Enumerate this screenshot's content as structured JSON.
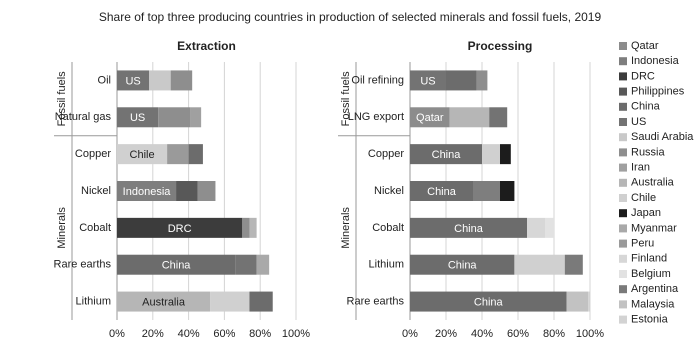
{
  "title": "Share of top three producing countries in production of selected minerals and fossil fuels, 2019",
  "legend": [
    {
      "name": "Qatar",
      "color": "#8c8c8c"
    },
    {
      "name": "Indonesia",
      "color": "#7e7e7e"
    },
    {
      "name": "DRC",
      "color": "#3c3c3c"
    },
    {
      "name": "Philippines",
      "color": "#585858"
    },
    {
      "name": "China",
      "color": "#6c6c6c"
    },
    {
      "name": "US",
      "color": "#737373"
    },
    {
      "name": "Saudi Arabia",
      "color": "#c9c9c9"
    },
    {
      "name": "Russia",
      "color": "#8e8e8e"
    },
    {
      "name": "Iran",
      "color": "#a0a0a0"
    },
    {
      "name": "Australia",
      "color": "#b6b6b6"
    },
    {
      "name": "Chile",
      "color": "#d0d0d0"
    },
    {
      "name": "Japan",
      "color": "#1c1c1c"
    },
    {
      "name": "Myanmar",
      "color": "#a9a9a9"
    },
    {
      "name": "Peru",
      "color": "#9a9a9a"
    },
    {
      "name": "Finland",
      "color": "#d7d7d7"
    },
    {
      "name": "Belgium",
      "color": "#e2e2e2"
    },
    {
      "name": "Argentina",
      "color": "#7a7a7a"
    },
    {
      "name": "Malaysia",
      "color": "#c2c2c2"
    },
    {
      "name": "Estonia",
      "color": "#d3d3d3"
    }
  ],
  "chart_data": [
    {
      "type": "bar",
      "orientation": "horizontal",
      "stacked": true,
      "title": "Extraction",
      "groups": [
        {
          "label": "Fossil fuels",
          "size": 2
        },
        {
          "label": "Minerals",
          "size": 5
        }
      ],
      "categories": [
        "Oil",
        "Natural gas",
        "Copper",
        "Nickel",
        "Cobalt",
        "Rare earths",
        "Lithium"
      ],
      "segments": [
        [
          {
            "name": "US",
            "value": 18
          },
          {
            "name": "Saudi Arabia",
            "value": 12
          },
          {
            "name": "Russia",
            "value": 12
          }
        ],
        [
          {
            "name": "US",
            "value": 23
          },
          {
            "name": "Russia",
            "value": 18
          },
          {
            "name": "Iran",
            "value": 6
          }
        ],
        [
          {
            "name": "Chile",
            "value": 28
          },
          {
            "name": "Peru",
            "value": 12
          },
          {
            "name": "China",
            "value": 8
          }
        ],
        [
          {
            "name": "Indonesia",
            "value": 33
          },
          {
            "name": "Philippines",
            "value": 12
          },
          {
            "name": "Russia",
            "value": 10
          }
        ],
        [
          {
            "name": "DRC",
            "value": 70
          },
          {
            "name": "Russia",
            "value": 4
          },
          {
            "name": "Australia",
            "value": 4
          }
        ],
        [
          {
            "name": "China",
            "value": 66
          },
          {
            "name": "US",
            "value": 12
          },
          {
            "name": "Myanmar",
            "value": 7
          }
        ],
        [
          {
            "name": "Australia",
            "value": 52
          },
          {
            "name": "Chile",
            "value": 22
          },
          {
            "name": "China",
            "value": 13
          }
        ]
      ],
      "xlim": [
        0,
        100
      ],
      "xticks": [
        {
          "value": 0,
          "label": "0%"
        },
        {
          "value": 20,
          "label": "20%"
        },
        {
          "value": 40,
          "label": "40%"
        },
        {
          "value": 60,
          "label": "60%"
        },
        {
          "value": 80,
          "label": "80%"
        },
        {
          "value": 100,
          "label": "100%"
        }
      ],
      "grid": true
    },
    {
      "type": "bar",
      "orientation": "horizontal",
      "stacked": true,
      "title": "Processing",
      "groups": [
        {
          "label": "Fossil fuels",
          "size": 2
        },
        {
          "label": "Minerals",
          "size": 5
        }
      ],
      "categories": [
        "Oil refining",
        "LNG export",
        "Copper",
        "Nickel",
        "Cobalt",
        "Lithium",
        "Rare earths"
      ],
      "segments": [
        [
          {
            "name": "US",
            "value": 20
          },
          {
            "name": "China",
            "value": 17
          },
          {
            "name": "Russia",
            "value": 6
          }
        ],
        [
          {
            "name": "Qatar",
            "value": 22
          },
          {
            "name": "Australia",
            "value": 22
          },
          {
            "name": "US",
            "value": 10
          }
        ],
        [
          {
            "name": "China",
            "value": 40
          },
          {
            "name": "Chile",
            "value": 10
          },
          {
            "name": "Japan",
            "value": 6
          }
        ],
        [
          {
            "name": "China",
            "value": 35
          },
          {
            "name": "Indonesia",
            "value": 15
          },
          {
            "name": "Japan",
            "value": 8
          }
        ],
        [
          {
            "name": "China",
            "value": 65
          },
          {
            "name": "Finland",
            "value": 10
          },
          {
            "name": "Belgium",
            "value": 5
          }
        ],
        [
          {
            "name": "China",
            "value": 58
          },
          {
            "name": "Chile",
            "value": 28
          },
          {
            "name": "Argentina",
            "value": 10
          }
        ],
        [
          {
            "name": "China",
            "value": 87
          },
          {
            "name": "Malaysia",
            "value": 12
          },
          {
            "name": "Estonia",
            "value": 1
          }
        ]
      ],
      "xlim": [
        0,
        100
      ],
      "xticks": [
        {
          "value": 0,
          "label": "0%"
        },
        {
          "value": 20,
          "label": "20%"
        },
        {
          "value": 40,
          "label": "40%"
        },
        {
          "value": 60,
          "label": "60%"
        },
        {
          "value": 80,
          "label": "80%"
        },
        {
          "value": 100,
          "label": "100%"
        }
      ],
      "grid": true
    }
  ]
}
